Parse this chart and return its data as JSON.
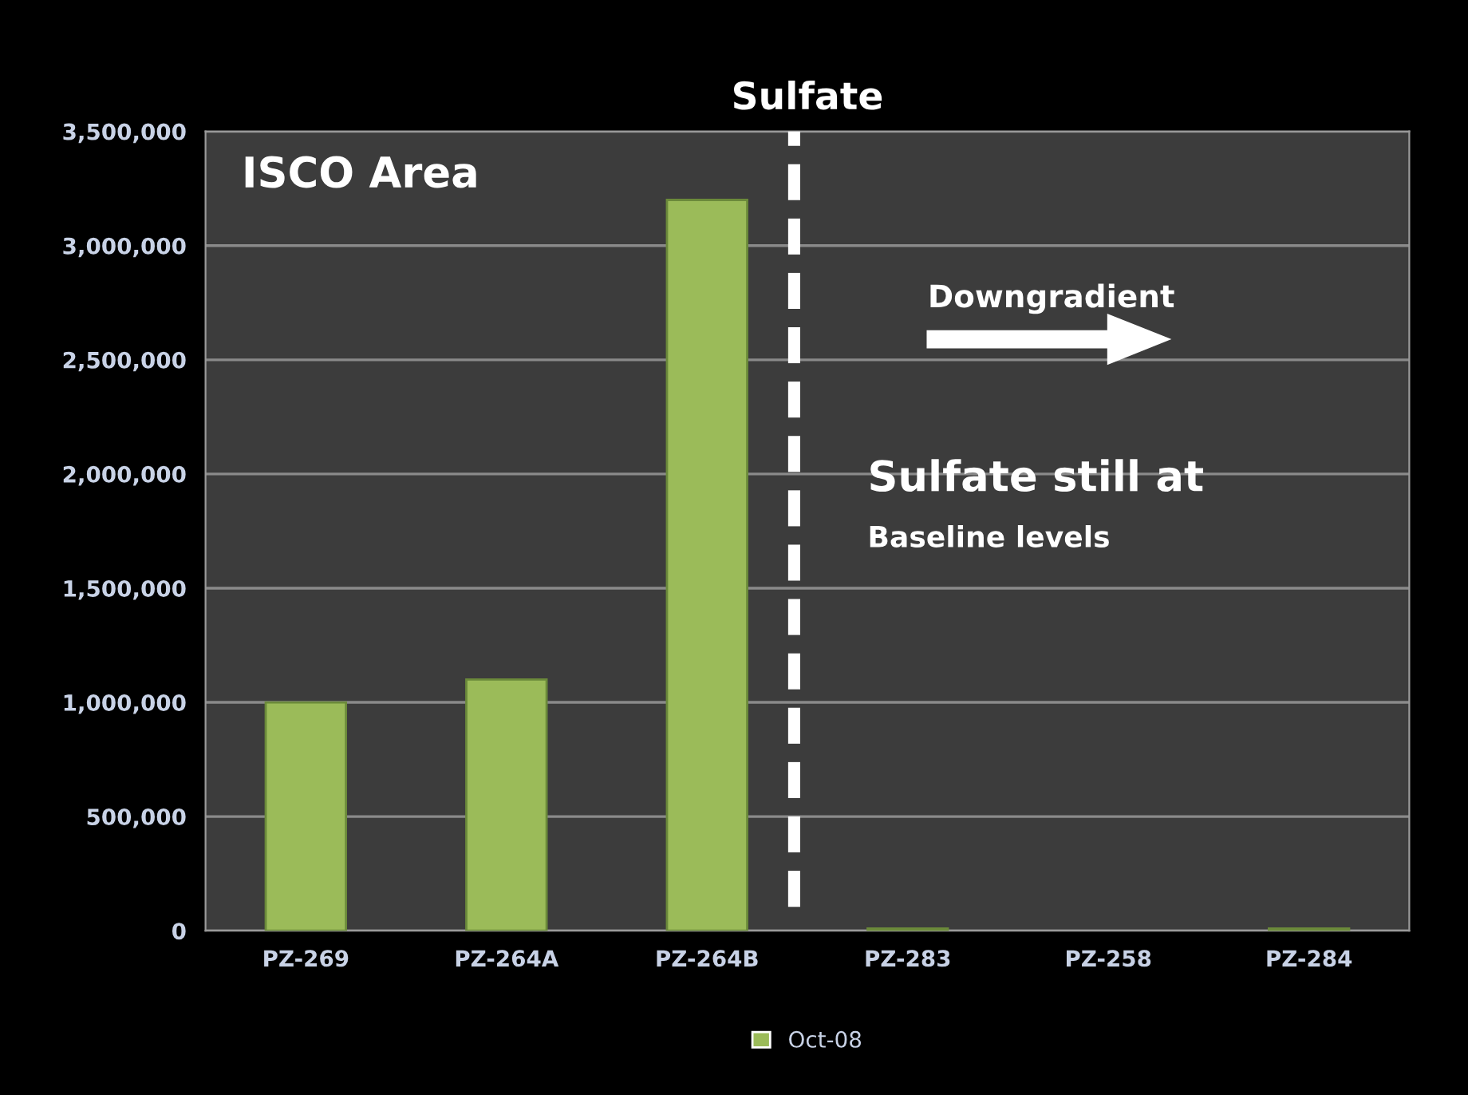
{
  "chart_data": {
    "type": "bar",
    "title": "Sulfate",
    "categories": [
      "PZ-269",
      "PZ-264A",
      "PZ-264B",
      "PZ-283",
      "PZ-258",
      "PZ-284"
    ],
    "series": [
      {
        "name": "Oct-08",
        "color": "#9bbb59",
        "values": [
          1000000,
          1100000,
          3200000,
          10000,
          null,
          10000
        ]
      }
    ],
    "ylim": [
      0,
      3500000
    ],
    "yticks": [
      {
        "value": 0,
        "label": "0"
      },
      {
        "value": 500000,
        "label": "500,000"
      },
      {
        "value": 1000000,
        "label": "1,000,000"
      },
      {
        "value": 1500000,
        "label": "1,500,000"
      },
      {
        "value": 2000000,
        "label": "2,000,000"
      },
      {
        "value": 2500000,
        "label": "2,500,000"
      },
      {
        "value": 3000000,
        "label": "3,000,000"
      },
      {
        "value": 3500000,
        "label": "3,500,000"
      }
    ],
    "grid": "y",
    "legend": "bottom",
    "annotations": [
      "ISCO Area",
      "Downgradient",
      "Sulfate still at",
      "Baseline levels"
    ]
  }
}
